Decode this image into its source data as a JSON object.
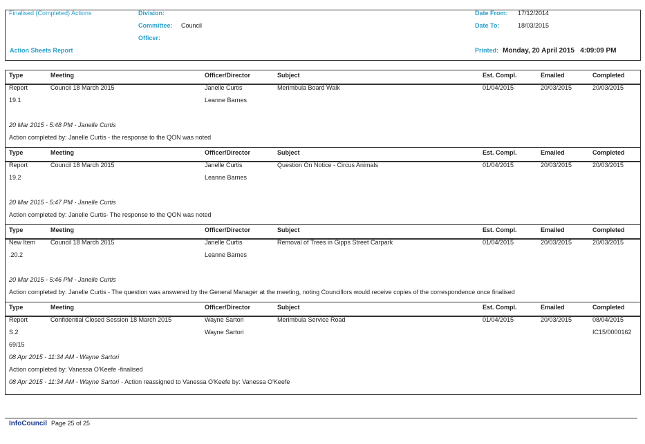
{
  "header": {
    "report_status": "Finalised (Completed) Actions",
    "report_name": "Action Sheets Report",
    "division_label": "Division:",
    "committee_label": "Committee:",
    "committee": "Council",
    "officer_label": "Officer:",
    "date_from_label": "Date From:",
    "date_from": "17/12/2014",
    "date_to_label": "Date To:",
    "date_to": "18/03/2015",
    "printed_label": "Printed:",
    "printed": "Monday, 20 April 2015   4:09:09 PM"
  },
  "columns": {
    "type": "Type",
    "meeting": "Meeting",
    "officer": "Officer/Director",
    "subject": "Subject",
    "est_compl": "Est. Compl.",
    "emailed": "Emailed",
    "completed": "Completed"
  },
  "records": [
    {
      "rows": [
        {
          "type": "Report",
          "meeting": "Council 18 March 2015",
          "officer": "Janelle Curtis",
          "subject": "Merimbula Board Walk",
          "est_compl": "01/04/2015",
          "emailed": "20/03/2015",
          "completed": "20/03/2015"
        },
        {
          "type": "19.1",
          "officer": "Leanne Barnes"
        }
      ],
      "notes": [
        {
          "stamp": "20 Mar 2015 - 5:48 PM - Janelle Curtis"
        },
        {
          "text": "Action completed by: Janelle Curtis - the response to the QON was noted"
        }
      ]
    },
    {
      "rows": [
        {
          "type": "Report",
          "meeting": "Council 18 March 2015",
          "officer": "Janelle Curtis",
          "subject": "Question On Notice - Circus Animals",
          "est_compl": "01/04/2015",
          "emailed": "20/03/2015",
          "completed": "20/03/2015"
        },
        {
          "type": "19.2",
          "officer": "Leanne Barnes"
        }
      ],
      "notes": [
        {
          "stamp": "20 Mar 2015 - 5:47 PM - Janelle Curtis"
        },
        {
          "text": "Action completed by: Janelle Curtis- The response to the QON was noted"
        }
      ]
    },
    {
      "rows": [
        {
          "type": "New Item",
          "meeting": "Council 18 March 2015",
          "officer": "Janelle Curtis",
          "subject": "Removal of Trees in Gipps Street Carpark",
          "est_compl": "01/04/2015",
          "emailed": "20/03/2015",
          "completed": "20/03/2015"
        },
        {
          "type": ".20.2",
          "officer": "Leanne Barnes"
        }
      ],
      "notes": [
        {
          "stamp": "20 Mar 2015 - 5:46 PM - Janelle Curtis"
        },
        {
          "text": "Action completed by: Janelle Curtis - The question was answered by the General Manager at the meeting, noting Councillors would receive copies of the correspondence once finalised"
        }
      ]
    },
    {
      "rows": [
        {
          "type": "Report",
          "meeting": "Confidential Closed Session 18 March 2015",
          "officer": "Wayne Sartori",
          "subject": "Merimbula Service Road",
          "est_compl": "01/04/2015",
          "emailed": "20/03/2015",
          "completed": "08/04/2015"
        },
        {
          "type": "S.2",
          "officer": "Wayne Sartori",
          "completed": "IC15/0000162"
        },
        {
          "type": "69/15"
        }
      ],
      "notes": [
        {
          "stamp": "08 Apr 2015 - 11:34 AM - Wayne Sartori"
        },
        {
          "text": "Action completed by: Vanessa O'Keefe -finalised"
        },
        {
          "stamp": "08 Apr 2015 - 11:34 AM - Wayne Sartori",
          "text": "- Action reassigned to Vanessa O'Keefe by: Vanessa O'Keefe"
        }
      ]
    }
  ],
  "footer": {
    "brand": "InfoCouncil",
    "page": "Page 25 of 25"
  }
}
